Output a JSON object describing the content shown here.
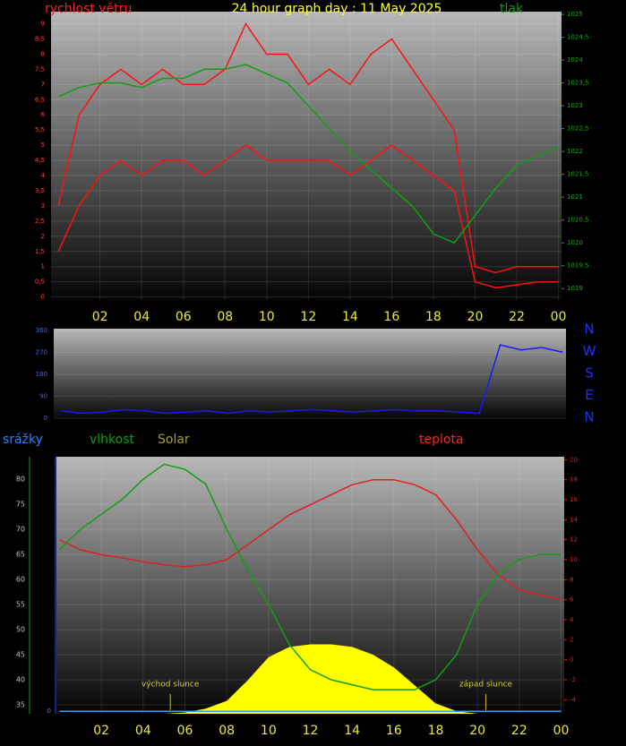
{
  "chart_data": [
    {
      "type": "line",
      "title": "24 hour graph day : 11 May 2025",
      "y_label": "rychlost větru",
      "y2_label": "tlak",
      "x": [
        0,
        1,
        2,
        3,
        4,
        5,
        6,
        7,
        8,
        9,
        10,
        11,
        12,
        13,
        14,
        15,
        16,
        17,
        18,
        19,
        20,
        21,
        22,
        23,
        24
      ],
      "xlim": [
        -0.35,
        24.15
      ],
      "xticks": [
        {
          "value": 2,
          "label": "02"
        },
        {
          "value": 4,
          "label": "04"
        },
        {
          "value": 6,
          "label": "06"
        },
        {
          "value": 8,
          "label": "08"
        },
        10,
        12,
        14,
        16,
        18,
        20,
        22,
        {
          "value": 24,
          "label": "00"
        }
      ],
      "ylim": [
        -0.1,
        9.4
      ],
      "yticks": [
        0,
        {
          "value": 0.5,
          "label": "0,5"
        },
        1,
        {
          "value": 1.5,
          "label": "1,5"
        },
        2,
        {
          "value": 2.5,
          "label": "2,5"
        },
        3,
        {
          "value": 3.5,
          "label": "3,5"
        },
        4,
        {
          "value": 4.5,
          "label": "4,5"
        },
        5,
        {
          "value": 5.5,
          "label": "5,5"
        },
        6,
        {
          "value": 6.5,
          "label": "6,5"
        },
        7,
        {
          "value": 7.5,
          "label": "7,5"
        },
        8,
        {
          "value": 8.5,
          "label": "8,5"
        },
        9
      ],
      "y2lim": [
        1018.75,
        1025.06
      ],
      "y2ticks": [
        1019,
        {
          "value": 1019.5,
          "label": "1019,5"
        },
        1020,
        {
          "value": 1020.5,
          "label": "1020,5"
        },
        1021,
        {
          "value": 1021.5,
          "label": "1021,5"
        },
        1022,
        {
          "value": 1022.5,
          "label": "1022,5"
        },
        1023,
        {
          "value": 1023.5,
          "label": "1023,5"
        },
        1024,
        {
          "value": 1024.5,
          "label": "1024,5"
        },
        1025
      ],
      "series": [
        {
          "color": "#ff1010",
          "axis": "y",
          "values": [
            3,
            6,
            7,
            7.5,
            7,
            7.5,
            7,
            7,
            7.5,
            9,
            8,
            8,
            7,
            7.5,
            7,
            8,
            8.5,
            7.5,
            6.5,
            5.5,
            1,
            0.8,
            1,
            1,
            1
          ]
        },
        {
          "color": "#ff1010",
          "axis": "y",
          "values": [
            1.5,
            3,
            4,
            4.5,
            4,
            4.5,
            4.5,
            4,
            4.5,
            5,
            4.5,
            4.5,
            4.5,
            4.5,
            4,
            4.5,
            5,
            4.5,
            4,
            3.5,
            0.5,
            0.3,
            0.4,
            0.5,
            0.5
          ]
        },
        {
          "color": "#10a010",
          "axis": "y2",
          "values": [
            1023.2,
            1023.4,
            1023.5,
            1023.5,
            1023.4,
            1023.6,
            1023.6,
            1023.8,
            1023.8,
            1023.9,
            1023.7,
            1023.5,
            1023.0,
            1022.5,
            1022.0,
            1021.6,
            1021.2,
            1020.8,
            1020.2,
            1020.0,
            1020.6,
            1021.2,
            1021.7,
            1021.9,
            1022.1
          ]
        }
      ]
    },
    {
      "type": "line",
      "compass": [
        "N",
        "W",
        "S",
        "E",
        "N"
      ],
      "x": [
        0,
        1,
        2,
        3,
        4,
        5,
        6,
        7,
        8,
        9,
        10,
        11,
        12,
        13,
        14,
        15,
        16,
        17,
        18,
        19,
        20,
        21,
        22,
        23,
        24
      ],
      "xlim": [
        -0.35,
        24.15
      ],
      "ylim": [
        -4,
        367
      ],
      "yticks": [
        0,
        90,
        180,
        270,
        360
      ],
      "series": [
        {
          "color": "#1818ff",
          "axis": "y",
          "values": [
            30,
            20,
            25,
            35,
            30,
            20,
            25,
            30,
            20,
            30,
            25,
            30,
            35,
            30,
            25,
            30,
            35,
            30,
            30,
            25,
            20,
            300,
            280,
            290,
            270
          ]
        }
      ]
    },
    {
      "type": "line",
      "y_label": "vlhkost",
      "y2_label": "teplota",
      "solar_label": "Solar",
      "rain_label": "srážky",
      "annotations": [
        {
          "x": 5.3,
          "text": "východ slunce"
        },
        {
          "x": 20.4,
          "text": "západ slunce"
        }
      ],
      "x": [
        0,
        1,
        2,
        3,
        4,
        5,
        6,
        7,
        8,
        9,
        10,
        11,
        12,
        13,
        14,
        15,
        16,
        17,
        18,
        19,
        20,
        21,
        22,
        23,
        24
      ],
      "xlim": [
        -0.15,
        24.15
      ],
      "xticks": [
        {
          "value": 2,
          "label": "02"
        },
        {
          "value": 4,
          "label": "04"
        },
        {
          "value": 6,
          "label": "06"
        },
        {
          "value": 8,
          "label": "08"
        },
        10,
        12,
        14,
        16,
        18,
        20,
        22,
        {
          "value": 24,
          "label": "00"
        }
      ],
      "ylim": [
        33.2,
        84.5
      ],
      "yticks": [
        35,
        40,
        45,
        50,
        55,
        60,
        65,
        70,
        75,
        80
      ],
      "y2lim": [
        -5.4,
        20.3
      ],
      "y2ticks": [
        -4,
        -2,
        0,
        2,
        4,
        6,
        8,
        10,
        12,
        14,
        16,
        18,
        20
      ],
      "solar_ylim": [
        0,
        1000
      ],
      "rain_ylim": [
        -0.1,
        10
      ],
      "rain_yticks": [
        0
      ],
      "series": [
        {
          "color": "#ffff00",
          "axis": "solar",
          "values": [
            0,
            0,
            0,
            0,
            0,
            0,
            5,
            20,
            50,
            130,
            220,
            260,
            270,
            270,
            260,
            230,
            180,
            110,
            40,
            10,
            0,
            0,
            0,
            0,
            0
          ]
        },
        {
          "color": "#30a0ff",
          "axis": "rain",
          "values": [
            0,
            0,
            0,
            0,
            0,
            0,
            0,
            0,
            0,
            0,
            0,
            0,
            0,
            0,
            0,
            0,
            0,
            0,
            0,
            0,
            0,
            0,
            0,
            0,
            0
          ]
        },
        {
          "color": "#e02020",
          "axis": "y2",
          "values": [
            12,
            11,
            10.5,
            10.2,
            9.8,
            9.5,
            9.3,
            9.5,
            10,
            11.5,
            13,
            14.5,
            15.5,
            16.5,
            17.5,
            18,
            18,
            17.5,
            16.5,
            14,
            11,
            8.5,
            7,
            6.5,
            6
          ]
        },
        {
          "color": "#10a010",
          "axis": "y",
          "values": [
            66,
            70,
            73,
            76,
            80,
            83,
            82,
            79,
            70,
            62,
            55,
            47,
            42,
            40,
            39,
            38,
            38,
            38,
            40,
            45,
            55,
            61,
            64,
            65,
            65
          ]
        }
      ]
    }
  ]
}
